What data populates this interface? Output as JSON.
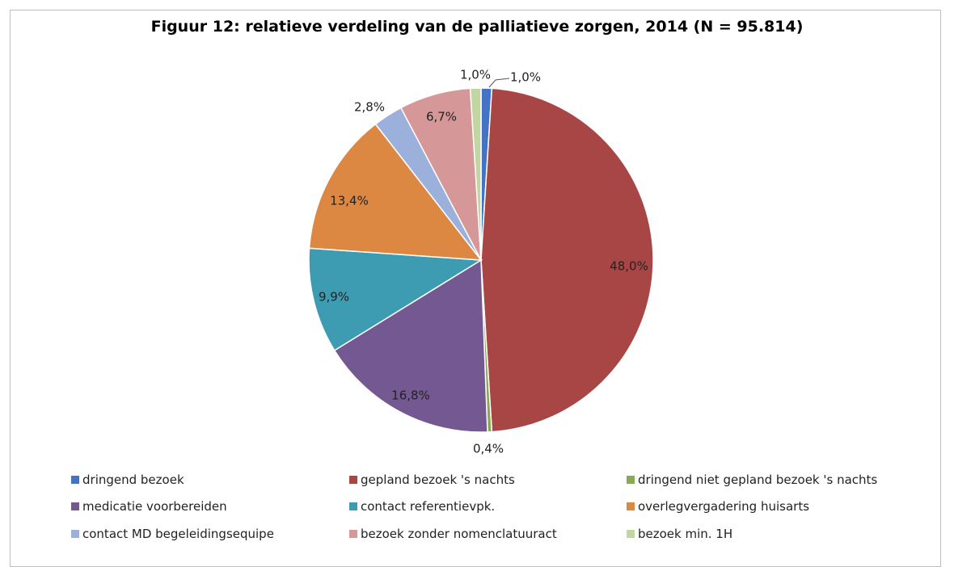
{
  "chart_data": {
    "type": "pie",
    "title": "Figuur 12: relatieve verdeling van de palliatieve zorgen, 2014 (N = 95.814)",
    "slices": [
      {
        "name": "dringend bezoek",
        "value": 1.0,
        "label": "1,0%",
        "color": "#4472c4"
      },
      {
        "name": "gepland bezoek 's nachts",
        "value": 48.0,
        "label": "48,0%",
        "color": "#a84545"
      },
      {
        "name": "dringend niet gepland bezoek 's nachts",
        "value": 0.4,
        "label": "0,4%",
        "color": "#8aa955"
      },
      {
        "name": "medicatie voorbereiden",
        "value": 16.8,
        "label": "16,8%",
        "color": "#735891"
      },
      {
        "name": "contact referentievpk.",
        "value": 9.9,
        "label": "9,9%",
        "color": "#3e9cb2"
      },
      {
        "name": "overlegvergadering huisarts",
        "value": 13.4,
        "label": "13,4%",
        "color": "#dc8842"
      },
      {
        "name": "contact MD begeleidingsequipe",
        "value": 2.8,
        "label": "2,8%",
        "color": "#9bb1db"
      },
      {
        "name": "bezoek zonder nomenclatuuract",
        "value": 6.7,
        "label": "6,7%",
        "color": "#d59797"
      },
      {
        "name": "bezoek min. 1H",
        "value": 1.0,
        "label": "1,0%",
        "color": "#c1d6a0"
      }
    ],
    "legend_position": "bottom"
  }
}
